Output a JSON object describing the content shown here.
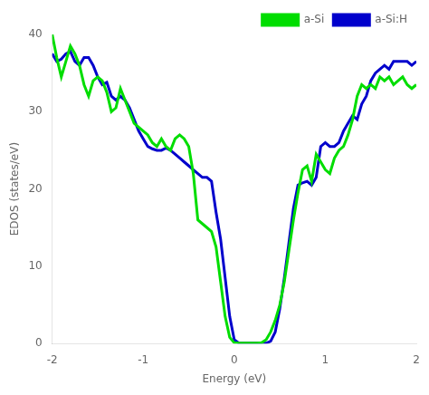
{
  "chart_data": {
    "type": "line",
    "xlabel": "Energy (eV)",
    "ylabel": "EDOS (states/eV)",
    "xlim": [
      -2,
      2
    ],
    "ylim": [
      0,
      40
    ],
    "xticks": [
      -2,
      -1,
      0,
      1,
      2
    ],
    "yticks": [
      0,
      10,
      20,
      30,
      40
    ],
    "grid": false,
    "legend": "upper right",
    "x": [
      -2.0,
      -1.95,
      -1.9,
      -1.85,
      -1.8,
      -1.75,
      -1.7,
      -1.65,
      -1.6,
      -1.55,
      -1.5,
      -1.45,
      -1.4,
      -1.35,
      -1.3,
      -1.25,
      -1.2,
      -1.15,
      -1.1,
      -1.05,
      -1.0,
      -0.95,
      -0.9,
      -0.85,
      -0.8,
      -0.75,
      -0.7,
      -0.65,
      -0.6,
      -0.55,
      -0.5,
      -0.45,
      -0.4,
      -0.35,
      -0.3,
      -0.25,
      -0.2,
      -0.15,
      -0.1,
      -0.05,
      0.0,
      0.05,
      0.1,
      0.15,
      0.2,
      0.25,
      0.3,
      0.35,
      0.4,
      0.45,
      0.5,
      0.55,
      0.6,
      0.65,
      0.7,
      0.75,
      0.8,
      0.85,
      0.9,
      0.95,
      1.0,
      1.05,
      1.1,
      1.15,
      1.2,
      1.25,
      1.3,
      1.35,
      1.4,
      1.45,
      1.5,
      1.55,
      1.6,
      1.65,
      1.7,
      1.75,
      1.8,
      1.85,
      1.9,
      1.95,
      2.0
    ],
    "series": [
      {
        "name": "a-Si",
        "color": "#00dd00",
        "values": [
          40.0,
          37.0,
          34.5,
          36.5,
          38.5,
          37.5,
          36.0,
          33.5,
          32.0,
          34.0,
          34.5,
          34.0,
          32.5,
          30.0,
          30.5,
          33.0,
          31.5,
          30.0,
          28.5,
          28.0,
          27.5,
          27.0,
          26.0,
          25.5,
          26.5,
          25.5,
          25.0,
          26.5,
          27.0,
          26.5,
          25.5,
          22.0,
          16.0,
          15.5,
          15.0,
          14.5,
          12.5,
          8.0,
          3.5,
          0.8,
          0.1,
          0.05,
          0.05,
          0.05,
          0.05,
          0.05,
          0.1,
          0.5,
          1.5,
          3.0,
          5.0,
          8.0,
          12.0,
          16.0,
          19.5,
          22.5,
          23.0,
          21.0,
          24.5,
          23.5,
          22.5,
          22.0,
          24.0,
          25.0,
          25.5,
          27.0,
          29.0,
          32.0,
          33.5,
          33.0,
          33.5,
          33.0,
          34.5,
          34.0,
          34.5,
          33.5,
          34.0,
          34.5,
          33.5,
          33.0,
          33.5
        ]
      },
      {
        "name": "a-Si:H",
        "color": "#0000cc",
        "values": [
          37.5,
          36.5,
          36.8,
          37.5,
          37.8,
          36.5,
          36.0,
          37.0,
          37.0,
          36.0,
          34.5,
          33.5,
          33.8,
          32.0,
          31.5,
          32.0,
          31.5,
          30.5,
          29.0,
          27.5,
          26.5,
          25.5,
          25.2,
          25.0,
          25.0,
          25.3,
          25.0,
          24.5,
          24.0,
          23.5,
          23.0,
          22.5,
          22.0,
          21.5,
          21.5,
          21.0,
          17.0,
          13.5,
          8.5,
          3.5,
          0.5,
          0.05,
          0.05,
          0.05,
          0.05,
          0.05,
          0.05,
          0.05,
          0.3,
          1.5,
          4.5,
          8.5,
          13.0,
          17.5,
          20.5,
          20.8,
          21.0,
          20.5,
          21.5,
          25.5,
          26.0,
          25.5,
          25.5,
          26.0,
          27.5,
          28.5,
          29.5,
          29.0,
          31.0,
          32.0,
          34.0,
          35.0,
          35.5,
          36.0,
          35.5,
          36.5,
          36.5,
          36.5,
          36.5,
          36.0,
          36.5
        ]
      }
    ]
  }
}
